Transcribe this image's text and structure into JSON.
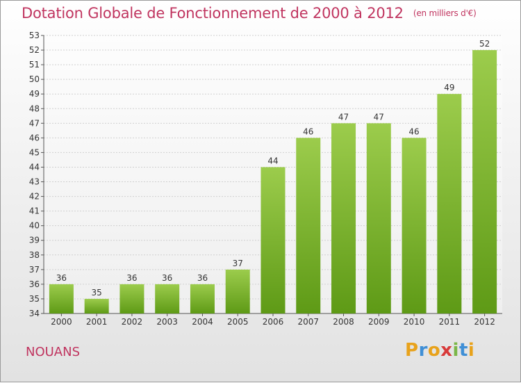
{
  "title": "Dotation Globale de Fonctionnement de 2000 à 2012",
  "subtitle": "(en milliers d'€)",
  "commune": "NOUANS",
  "logo": {
    "letters": [
      "P",
      "r",
      "o",
      "x",
      "i",
      "t",
      "i"
    ],
    "colors": [
      "#e8a21b",
      "#3f8fd6",
      "#e8a21b",
      "#d83a3a",
      "#7ab648",
      "#3f8fd6",
      "#e8a21b"
    ]
  },
  "colors": {
    "title": "#c0345f",
    "bar_top": "#9ccc4c",
    "bar_bottom": "#5e9a16",
    "grid": "#d0d0d0"
  },
  "chart_data": {
    "type": "bar",
    "categories": [
      "2000",
      "2001",
      "2002",
      "2003",
      "2004",
      "2005",
      "2006",
      "2007",
      "2008",
      "2009",
      "2010",
      "2011",
      "2012"
    ],
    "values": [
      36,
      35,
      36,
      36,
      36,
      37,
      44,
      46,
      47,
      47,
      46,
      49,
      52
    ],
    "ylim": [
      34,
      53
    ],
    "yticks": [
      34,
      35,
      36,
      37,
      38,
      39,
      40,
      41,
      42,
      43,
      44,
      45,
      46,
      47,
      48,
      49,
      50,
      51,
      52,
      53
    ],
    "grid": true,
    "data_labels": true
  }
}
